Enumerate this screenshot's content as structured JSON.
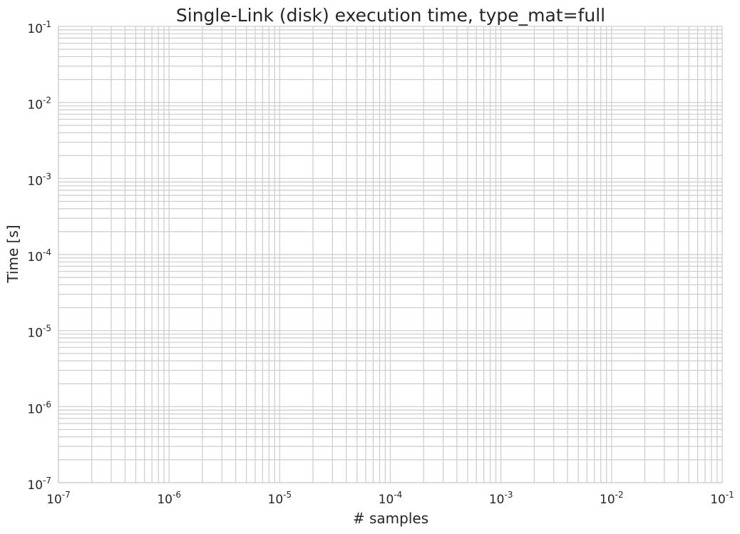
{
  "chart_data": {
    "type": "line",
    "title": "Single-Link (disk) execution time, type_mat=full",
    "xlabel": "# samples",
    "ylabel": "Time [s]",
    "xscale": "log",
    "yscale": "log",
    "xlim": [
      1e-07,
      0.1
    ],
    "ylim": [
      1e-07,
      0.1
    ],
    "grid": true,
    "grid_minor": true,
    "x_ticks": [
      {
        "base": "10",
        "exp": "-7"
      },
      {
        "base": "10",
        "exp": "-6"
      },
      {
        "base": "10",
        "exp": "-5"
      },
      {
        "base": "10",
        "exp": "-4"
      },
      {
        "base": "10",
        "exp": "-3"
      },
      {
        "base": "10",
        "exp": "-2"
      },
      {
        "base": "10",
        "exp": "-1"
      }
    ],
    "y_ticks": [
      {
        "base": "10",
        "exp": "-1"
      },
      {
        "base": "10",
        "exp": "-2"
      },
      {
        "base": "10",
        "exp": "-3"
      },
      {
        "base": "10",
        "exp": "-4"
      },
      {
        "base": "10",
        "exp": "-5"
      },
      {
        "base": "10",
        "exp": "-6"
      },
      {
        "base": "10",
        "exp": "-7"
      }
    ],
    "series": []
  },
  "colors": {
    "grid": "#cccccc",
    "text": "#262626",
    "background": "#ffffff"
  }
}
